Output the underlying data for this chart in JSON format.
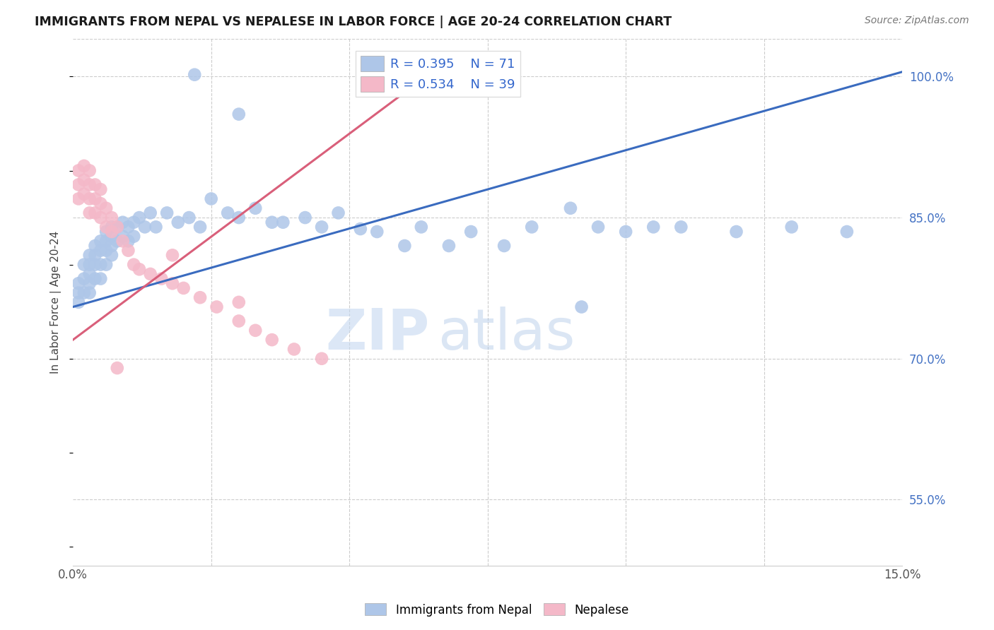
{
  "title": "IMMIGRANTS FROM NEPAL VS NEPALESE IN LABOR FORCE | AGE 20-24 CORRELATION CHART",
  "source": "Source: ZipAtlas.com",
  "ylabel": "In Labor Force | Age 20-24",
  "xlim": [
    0.0,
    0.15
  ],
  "ylim": [
    0.48,
    1.04
  ],
  "color_blue": "#aec6e8",
  "color_pink": "#f4b8c8",
  "line_blue": "#3a6bbf",
  "line_pink": "#d95f7a",
  "legend_label1": "R = 0.395    N = 71",
  "legend_label2": "R = 0.534    N = 39",
  "watermark_zip": "ZIP",
  "watermark_atlas": "atlas",
  "blue_line_x0": 0.0,
  "blue_line_y0": 0.755,
  "blue_line_x1": 0.15,
  "blue_line_y1": 1.005,
  "pink_line_x0": 0.0,
  "pink_line_y0": 0.72,
  "pink_line_x1": 0.065,
  "pink_line_y1": 1.005,
  "blue_x": [
    0.001,
    0.001,
    0.001,
    0.002,
    0.002,
    0.002,
    0.003,
    0.003,
    0.003,
    0.003,
    0.003,
    0.004,
    0.004,
    0.004,
    0.004,
    0.005,
    0.005,
    0.005,
    0.005,
    0.006,
    0.006,
    0.006,
    0.006,
    0.007,
    0.007,
    0.007,
    0.007,
    0.008,
    0.008,
    0.009,
    0.009,
    0.01,
    0.01,
    0.011,
    0.011,
    0.012,
    0.013,
    0.014,
    0.015,
    0.017,
    0.019,
    0.021,
    0.023,
    0.025,
    0.028,
    0.03,
    0.033,
    0.036,
    0.038,
    0.042,
    0.045,
    0.048,
    0.052,
    0.055,
    0.06,
    0.063,
    0.068,
    0.072,
    0.078,
    0.083,
    0.09,
    0.095,
    0.1,
    0.105,
    0.11,
    0.12,
    0.13,
    0.14,
    0.092,
    0.03,
    0.022
  ],
  "blue_y": [
    0.78,
    0.77,
    0.76,
    0.8,
    0.785,
    0.77,
    0.81,
    0.8,
    0.79,
    0.78,
    0.77,
    0.82,
    0.81,
    0.8,
    0.785,
    0.825,
    0.815,
    0.8,
    0.785,
    0.835,
    0.825,
    0.815,
    0.8,
    0.84,
    0.83,
    0.82,
    0.81,
    0.84,
    0.825,
    0.845,
    0.83,
    0.84,
    0.825,
    0.845,
    0.83,
    0.85,
    0.84,
    0.855,
    0.84,
    0.855,
    0.845,
    0.85,
    0.84,
    0.87,
    0.855,
    0.85,
    0.86,
    0.845,
    0.845,
    0.85,
    0.84,
    0.855,
    0.838,
    0.835,
    0.82,
    0.84,
    0.82,
    0.835,
    0.82,
    0.84,
    0.86,
    0.84,
    0.835,
    0.84,
    0.84,
    0.835,
    0.84,
    0.835,
    0.755,
    0.96,
    1.002
  ],
  "pink_x": [
    0.001,
    0.001,
    0.001,
    0.002,
    0.002,
    0.002,
    0.003,
    0.003,
    0.003,
    0.003,
    0.004,
    0.004,
    0.004,
    0.005,
    0.005,
    0.005,
    0.006,
    0.006,
    0.007,
    0.007,
    0.008,
    0.009,
    0.01,
    0.011,
    0.012,
    0.014,
    0.016,
    0.018,
    0.02,
    0.023,
    0.026,
    0.03,
    0.033,
    0.036,
    0.04,
    0.045,
    0.03,
    0.018,
    0.008
  ],
  "pink_y": [
    0.9,
    0.885,
    0.87,
    0.905,
    0.89,
    0.875,
    0.9,
    0.885,
    0.87,
    0.855,
    0.885,
    0.87,
    0.855,
    0.88,
    0.865,
    0.85,
    0.86,
    0.84,
    0.85,
    0.835,
    0.84,
    0.825,
    0.815,
    0.8,
    0.795,
    0.79,
    0.785,
    0.78,
    0.775,
    0.765,
    0.755,
    0.74,
    0.73,
    0.72,
    0.71,
    0.7,
    0.76,
    0.81,
    0.69
  ]
}
